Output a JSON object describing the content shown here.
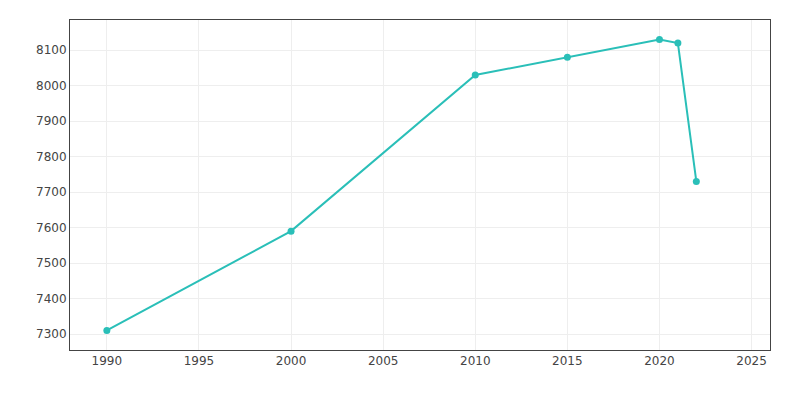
{
  "chart_data": {
    "type": "line",
    "x": [
      1990,
      2000,
      2010,
      2015,
      2020,
      2021,
      2022
    ],
    "values": [
      7310,
      7590,
      8030,
      8080,
      8130,
      8120,
      7730
    ],
    "color": "#2abfb8",
    "marker": "circle",
    "xlim": [
      1988,
      2026
    ],
    "ylim": [
      7255,
      8185
    ],
    "xticks": [
      1990,
      1995,
      2000,
      2005,
      2010,
      2015,
      2020,
      2025
    ],
    "yticks": [
      7300,
      7400,
      7500,
      7600,
      7700,
      7800,
      7900,
      8000,
      8100
    ],
    "grid": true
  }
}
